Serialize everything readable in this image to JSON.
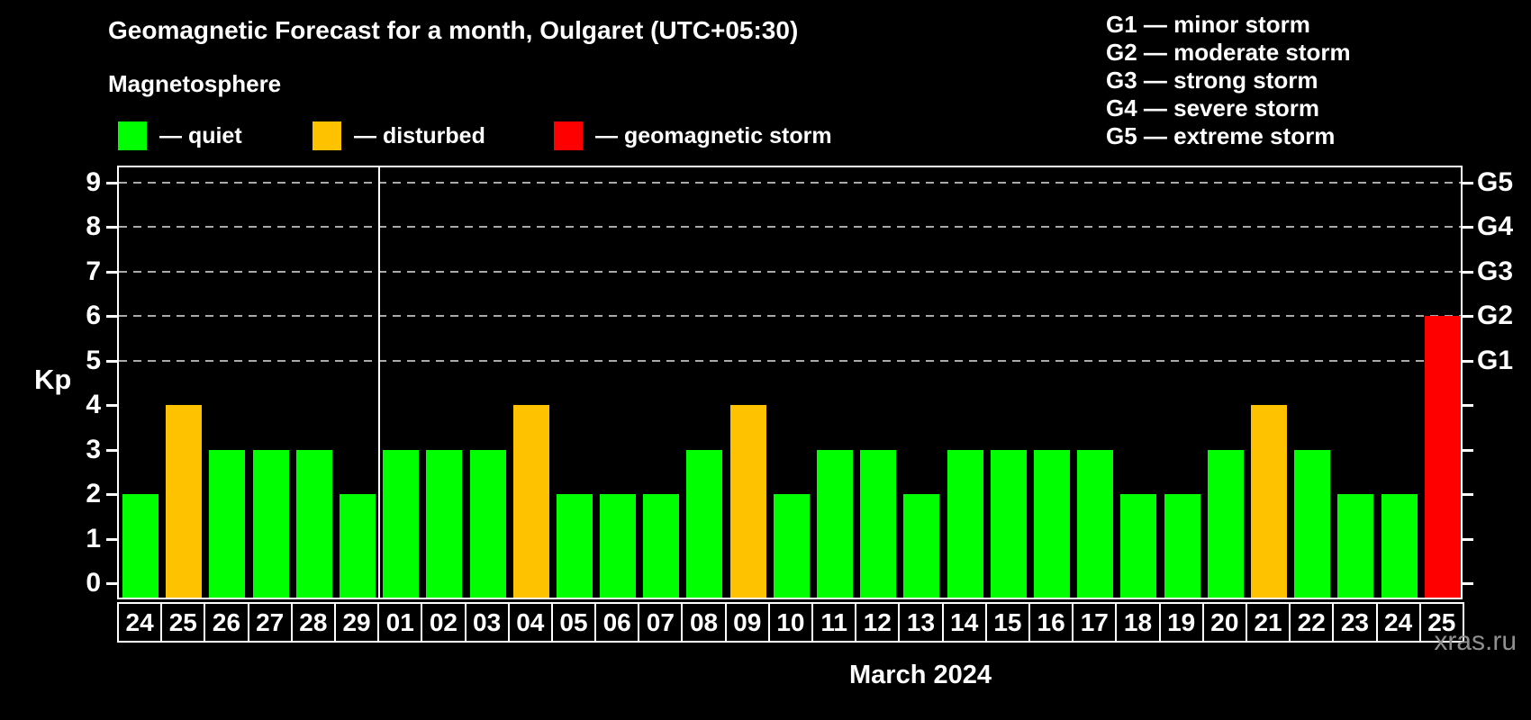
{
  "header": {
    "title": "Geomagnetic Forecast for a month, Oulgaret (UTC+05:30)",
    "subtitle": "Magnetosphere"
  },
  "legend": {
    "items": [
      {
        "key": "quiet",
        "label": "— quiet",
        "color": "#00ff00"
      },
      {
        "key": "disturbed",
        "label": "— disturbed",
        "color": "#ffc200"
      },
      {
        "key": "storm",
        "label": "— geomagnetic storm",
        "color": "#ff0000"
      }
    ]
  },
  "g_legend": {
    "lines": [
      "G1 — minor storm",
      "G2 — moderate storm",
      "G3 — strong storm",
      "G4 — severe storm",
      "G5 — extreme storm"
    ]
  },
  "chart_data": {
    "type": "bar",
    "title": "Geomagnetic Forecast for a month, Oulgaret (UTC+05:30)",
    "ylabel": "Kp",
    "xlabel": "March 2024",
    "ylim": [
      0,
      9
    ],
    "yticks": [
      0,
      1,
      2,
      3,
      4,
      5,
      6,
      7,
      8,
      9
    ],
    "grid": "dashed horizontal lines at storm levels only",
    "g_levels": [
      {
        "kp": 5,
        "label": "G1"
      },
      {
        "kp": 6,
        "label": "G2"
      },
      {
        "kp": 7,
        "label": "G3"
      },
      {
        "kp": 8,
        "label": "G4"
      },
      {
        "kp": 9,
        "label": "G5"
      }
    ],
    "categories": [
      "24",
      "25",
      "26",
      "27",
      "28",
      "29",
      "01",
      "02",
      "03",
      "04",
      "05",
      "06",
      "07",
      "08",
      "09",
      "10",
      "11",
      "12",
      "13",
      "14",
      "15",
      "16",
      "17",
      "18",
      "19",
      "20",
      "21",
      "22",
      "23",
      "24",
      "25"
    ],
    "values": [
      2,
      4,
      3,
      3,
      3,
      2,
      3,
      3,
      3,
      4,
      2,
      2,
      2,
      3,
      4,
      2,
      3,
      3,
      2,
      3,
      3,
      3,
      3,
      2,
      2,
      3,
      4,
      3,
      2,
      2,
      6
    ],
    "statuses": [
      "quiet",
      "disturbed",
      "quiet",
      "quiet",
      "quiet",
      "quiet",
      "quiet",
      "quiet",
      "quiet",
      "disturbed",
      "quiet",
      "quiet",
      "quiet",
      "quiet",
      "disturbed",
      "quiet",
      "quiet",
      "quiet",
      "quiet",
      "quiet",
      "quiet",
      "quiet",
      "quiet",
      "quiet",
      "quiet",
      "quiet",
      "disturbed",
      "quiet",
      "quiet",
      "quiet",
      "storm"
    ],
    "month_separator_index": 6,
    "gridline_color": "#aaaaaa"
  },
  "axis": {
    "kp_label": "Kp"
  },
  "footer": {
    "month_label": "March 2024",
    "watermark": "xras.ru"
  }
}
